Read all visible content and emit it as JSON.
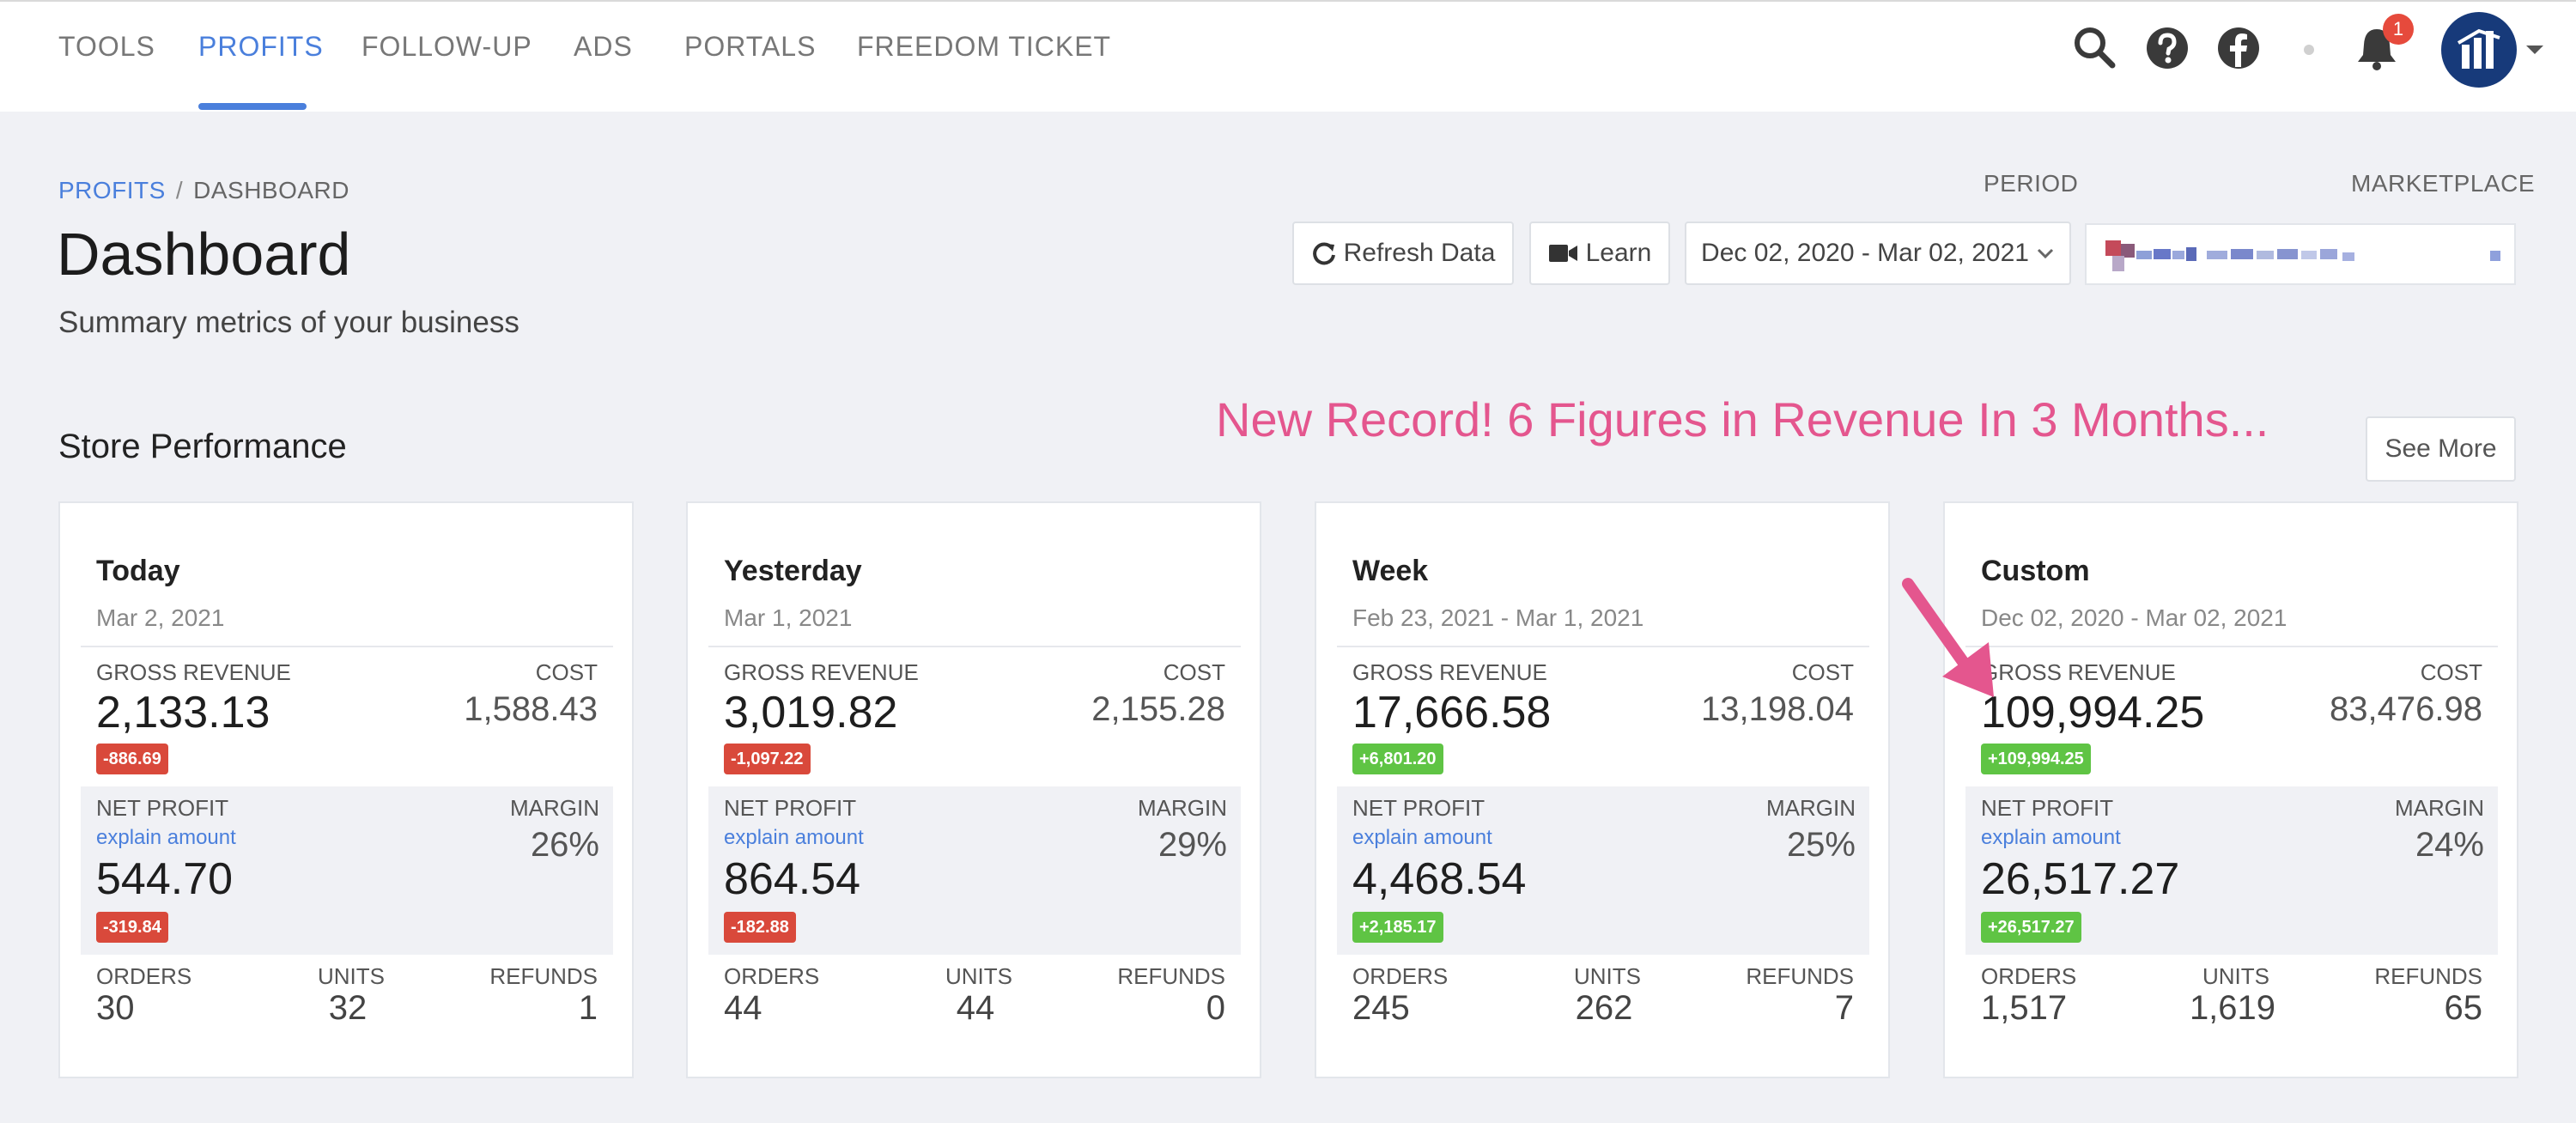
{
  "nav": {
    "tabs": [
      {
        "label": "TOOLS",
        "active": false
      },
      {
        "label": "PROFITS",
        "active": true
      },
      {
        "label": "FOLLOW-UP",
        "active": false
      },
      {
        "label": "ADS",
        "active": false
      },
      {
        "label": "PORTALS",
        "active": false
      },
      {
        "label": "FREEDOM TICKET",
        "active": false
      }
    ],
    "icons": [
      "search-icon",
      "help-icon",
      "facebook-icon",
      "bell-icon",
      "avatar",
      "chevron-down-icon"
    ],
    "notification_count": "1"
  },
  "header": {
    "breadcrumb": {
      "link": "PROFITS",
      "separator": "/",
      "current": "DASHBOARD"
    },
    "title": "Dashboard",
    "subtitle": "Summary metrics of your business"
  },
  "controls": {
    "refresh_label": "Refresh Data",
    "learn_label": "Learn",
    "period_label": "PERIOD",
    "period_value": "Dec 02, 2020 - Mar 02, 2021",
    "marketplace_label": "MARKETPLACE"
  },
  "store": {
    "section_title": "Store Performance",
    "promo_text": "New Record! 6 Figures in Revenue In 3 Months...",
    "see_more_label": "See More",
    "labels": {
      "gross_revenue": "GROSS REVENUE",
      "cost": "COST",
      "net_profit": "NET PROFIT",
      "explain": "explain amount",
      "margin": "MARGIN",
      "orders": "ORDERS",
      "units": "UNITS",
      "refunds": "REFUNDS"
    },
    "cards": [
      {
        "title": "Today",
        "date": "Mar 2, 2021",
        "gross_revenue": "2,133.13",
        "revenue_delta": "-886.69",
        "revenue_delta_dir": "neg",
        "cost": "1,588.43",
        "net_profit": "544.70",
        "profit_delta": "-319.84",
        "profit_delta_dir": "neg",
        "margin": "26%",
        "orders": "30",
        "units": "32",
        "refunds": "1"
      },
      {
        "title": "Yesterday",
        "date": "Mar 1, 2021",
        "gross_revenue": "3,019.82",
        "revenue_delta": "-1,097.22",
        "revenue_delta_dir": "neg",
        "cost": "2,155.28",
        "net_profit": "864.54",
        "profit_delta": "-182.88",
        "profit_delta_dir": "neg",
        "margin": "29%",
        "orders": "44",
        "units": "44",
        "refunds": "0"
      },
      {
        "title": "Week",
        "date": "Feb 23, 2021 - Mar 1, 2021",
        "gross_revenue": "17,666.58",
        "revenue_delta": "+6,801.20",
        "revenue_delta_dir": "pos",
        "cost": "13,198.04",
        "net_profit": "4,468.54",
        "profit_delta": "+2,185.17",
        "profit_delta_dir": "pos",
        "margin": "25%",
        "orders": "245",
        "units": "262",
        "refunds": "7"
      },
      {
        "title": "Custom",
        "date": "Dec 02, 2020 - Mar 02, 2021",
        "gross_revenue": "109,994.25",
        "revenue_delta": "+109,994.25",
        "revenue_delta_dir": "pos",
        "cost": "83,476.98",
        "net_profit": "26,517.27",
        "profit_delta": "+26,517.27",
        "profit_delta_dir": "pos",
        "margin": "24%",
        "orders": "1,517",
        "units": "1,619",
        "refunds": "65"
      }
    ]
  },
  "colors": {
    "accent": "#4a7fdc",
    "promo": "#e4568e",
    "negative": "#d9493b",
    "positive": "#5fc444"
  }
}
